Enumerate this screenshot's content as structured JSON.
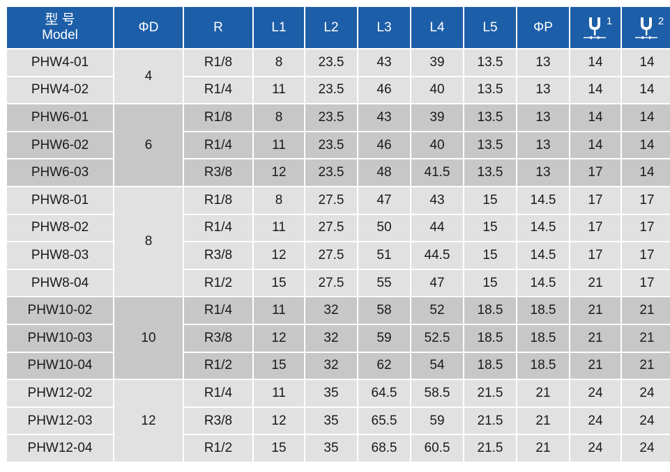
{
  "headers": {
    "model_cn": "型 号",
    "model_en": "Model",
    "phi_d": "ΦD",
    "r": "R",
    "l1": "L1",
    "l2": "L2",
    "l3": "L3",
    "l4": "L4",
    "l5": "L5",
    "phi_p": "ΦP",
    "wrench1_num": "1",
    "wrench2_num": "2",
    "wrench1_icon": "wrench-size-1-icon",
    "wrench2_icon": "wrench-size-2-icon"
  },
  "colors": {
    "header_bg": "#1d5ea8",
    "row_light": "#e1e1e1",
    "row_dark": "#c7c7c7"
  },
  "groups": [
    {
      "d": "4",
      "rows": [
        [
          "PHW4-01",
          "R1/8",
          "8",
          "23.5",
          "43",
          "39",
          "13.5",
          "13",
          "14",
          "14"
        ],
        [
          "PHW4-02",
          "R1/4",
          "11",
          "23.5",
          "46",
          "40",
          "13.5",
          "13",
          "14",
          "14"
        ]
      ]
    },
    {
      "d": "6",
      "rows": [
        [
          "PHW6-01",
          "R1/8",
          "8",
          "23.5",
          "43",
          "39",
          "13.5",
          "13",
          "14",
          "14"
        ],
        [
          "PHW6-02",
          "R1/4",
          "11",
          "23.5",
          "46",
          "40",
          "13.5",
          "13",
          "14",
          "14"
        ],
        [
          "PHW6-03",
          "R3/8",
          "12",
          "23.5",
          "48",
          "41.5",
          "13.5",
          "13",
          "17",
          "14"
        ]
      ]
    },
    {
      "d": "8",
      "rows": [
        [
          "PHW8-01",
          "R1/8",
          "8",
          "27.5",
          "47",
          "43",
          "15",
          "14.5",
          "17",
          "17"
        ],
        [
          "PHW8-02",
          "R1/4",
          "11",
          "27.5",
          "50",
          "44",
          "15",
          "14.5",
          "17",
          "17"
        ],
        [
          "PHW8-03",
          "R3/8",
          "12",
          "27.5",
          "51",
          "44.5",
          "15",
          "14.5",
          "17",
          "17"
        ],
        [
          "PHW8-04",
          "R1/2",
          "15",
          "27.5",
          "55",
          "47",
          "15",
          "14.5",
          "21",
          "17"
        ]
      ]
    },
    {
      "d": "10",
      "rows": [
        [
          "PHW10-02",
          "R1/4",
          "11",
          "32",
          "58",
          "52",
          "18.5",
          "18.5",
          "21",
          "21"
        ],
        [
          "PHW10-03",
          "R3/8",
          "12",
          "32",
          "59",
          "52.5",
          "18.5",
          "18.5",
          "21",
          "21"
        ],
        [
          "PHW10-04",
          "R1/2",
          "15",
          "32",
          "62",
          "54",
          "18.5",
          "18.5",
          "21",
          "21"
        ]
      ]
    },
    {
      "d": "12",
      "rows": [
        [
          "PHW12-02",
          "R1/4",
          "11",
          "35",
          "64.5",
          "58.5",
          "21.5",
          "21",
          "24",
          "24"
        ],
        [
          "PHW12-03",
          "R3/8",
          "12",
          "35",
          "65.5",
          "59",
          "21.5",
          "21",
          "24",
          "24"
        ],
        [
          "PHW12-04",
          "R1/2",
          "15",
          "35",
          "68.5",
          "60.5",
          "21.5",
          "21",
          "24",
          "24"
        ]
      ]
    }
  ]
}
